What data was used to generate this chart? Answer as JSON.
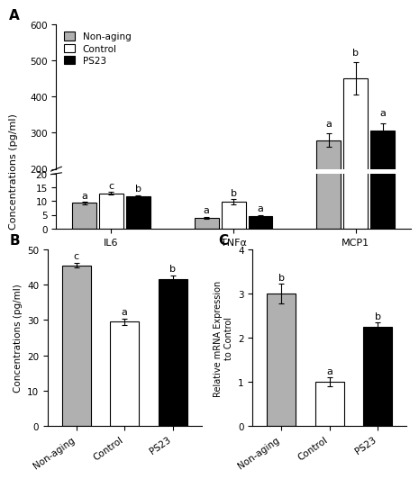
{
  "panel_A": {
    "groups": [
      "IL6",
      "TNFα",
      "MCP1"
    ],
    "categories": [
      "Non-aging",
      "Control",
      "PS23"
    ],
    "colors": [
      "#b0b0b0",
      "#ffffff",
      "#000000"
    ],
    "bar_edgecolor": "#000000",
    "values_IL6": [
      9.3,
      12.8,
      11.7
    ],
    "values_TNFa": [
      4.0,
      9.7,
      4.5
    ],
    "values_MCP1": [
      280,
      450,
      305
    ],
    "errors_IL6": [
      0.4,
      0.5,
      0.5
    ],
    "errors_TNFa": [
      0.3,
      1.0,
      0.4
    ],
    "errors_MCP1": [
      18,
      45,
      22
    ],
    "letters_IL6": [
      "a",
      "c",
      "b"
    ],
    "letters_TNFa": [
      "a",
      "b",
      "a"
    ],
    "letters_MCP1": [
      "a",
      "b",
      "a"
    ],
    "ylabel": "Concentrations (pg/ml)",
    "ylim_low": [
      0,
      20
    ],
    "ylim_high": [
      200,
      600
    ],
    "yticks_low": [
      0,
      5,
      10,
      15,
      20
    ],
    "yticks_high": [
      200,
      300,
      400,
      500,
      600
    ]
  },
  "panel_B": {
    "categories": [
      "Non-aging",
      "Control",
      "PS23"
    ],
    "colors": [
      "#b0b0b0",
      "#ffffff",
      "#000000"
    ],
    "bar_edgecolor": "#000000",
    "values": [
      45.5,
      29.5,
      41.5
    ],
    "errors": [
      0.7,
      0.9,
      1.0
    ],
    "letters": [
      "c",
      "a",
      "b"
    ],
    "ylabel": "Concentrations (pg/ml)",
    "ylim": [
      0,
      50
    ],
    "yticks": [
      0,
      10,
      20,
      30,
      40,
      50
    ]
  },
  "panel_C": {
    "categories": [
      "Non-aging",
      "Control",
      "PS23"
    ],
    "colors": [
      "#b0b0b0",
      "#ffffff",
      "#000000"
    ],
    "bar_edgecolor": "#000000",
    "values": [
      3.0,
      1.0,
      2.25
    ],
    "errors": [
      0.22,
      0.1,
      0.1
    ],
    "letters": [
      "b",
      "a",
      "b"
    ],
    "ylabel": "Relative mRNA Expression\nto Control",
    "ylim": [
      0,
      4
    ],
    "yticks": [
      0,
      1,
      2,
      3,
      4
    ]
  },
  "legend_labels": [
    "Non-aging",
    "Control",
    "PS23"
  ],
  "legend_colors": [
    "#b0b0b0",
    "#ffffff",
    "#000000"
  ],
  "bar_width": 0.22,
  "fontsize": 8,
  "tick_fontsize": 7.5
}
